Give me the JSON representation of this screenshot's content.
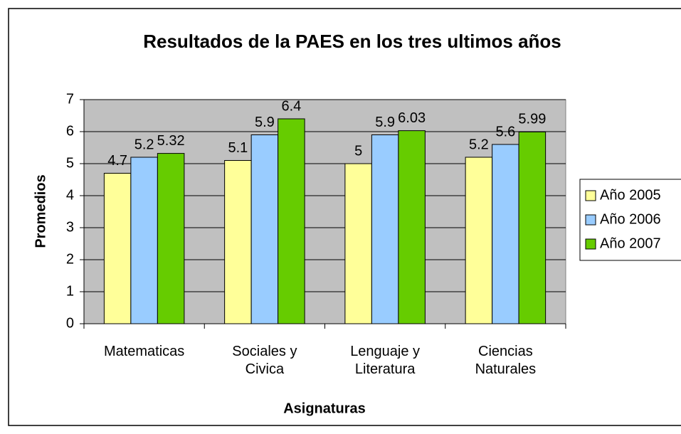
{
  "chart_data": {
    "type": "bar",
    "title": "Resultados de la PAES en los tres ultimos años",
    "x_label": "Asignaturas",
    "y_label": "Promedios",
    "categories": [
      "Matematicas",
      "Sociales y Civica",
      "Lenguaje y Literatura",
      "Ciencias Naturales"
    ],
    "series": [
      {
        "name": "Año 2005",
        "color": "#ffff99",
        "values": [
          4.7,
          5.1,
          5,
          5.2
        ]
      },
      {
        "name": "Año 2006",
        "color": "#99ccff",
        "values": [
          5.2,
          5.9,
          5.9,
          5.6
        ]
      },
      {
        "name": "Año 2007",
        "color": "#66cc00",
        "values": [
          5.32,
          6.4,
          6.03,
          5.99
        ]
      }
    ],
    "ylim": [
      0,
      7
    ],
    "yticks": [
      0,
      1,
      2,
      3,
      4,
      5,
      6,
      7
    ],
    "grid": true,
    "legend": "right"
  }
}
